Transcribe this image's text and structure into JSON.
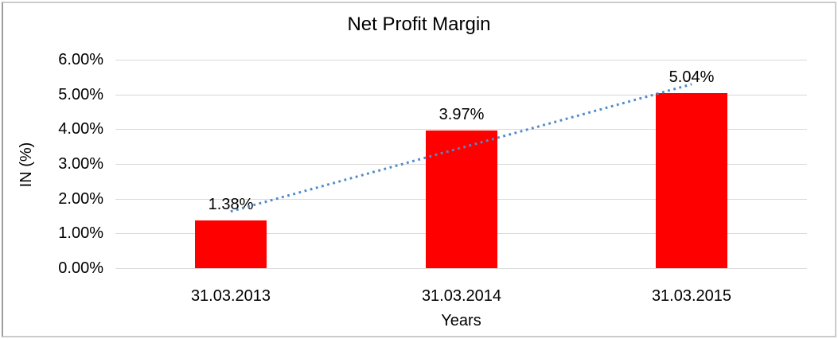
{
  "chart_data": {
    "type": "bar",
    "title": "Net Profit Margin",
    "xlabel": "Years",
    "ylabel": "IN (%)",
    "categories": [
      "31.03.2013",
      "31.03.2014",
      "31.03.2015"
    ],
    "values": [
      1.38,
      3.97,
      5.04
    ],
    "data_labels": [
      "1.38%",
      "3.97%",
      "5.04%"
    ],
    "y_ticks": [
      "0.00%",
      "1.00%",
      "2.00%",
      "3.00%",
      "4.00%",
      "5.00%",
      "6.00%"
    ],
    "ylim": [
      0,
      6
    ],
    "y_tick_step": 1,
    "grid": true,
    "legend": "none",
    "trendline": {
      "type": "linear",
      "style": "dotted"
    },
    "colors": {
      "bar": "#FF0000",
      "trendline": "#4F8BC9",
      "gridline": "#D9D9D9",
      "text": "#000000",
      "background": "#FFFFFF"
    }
  }
}
